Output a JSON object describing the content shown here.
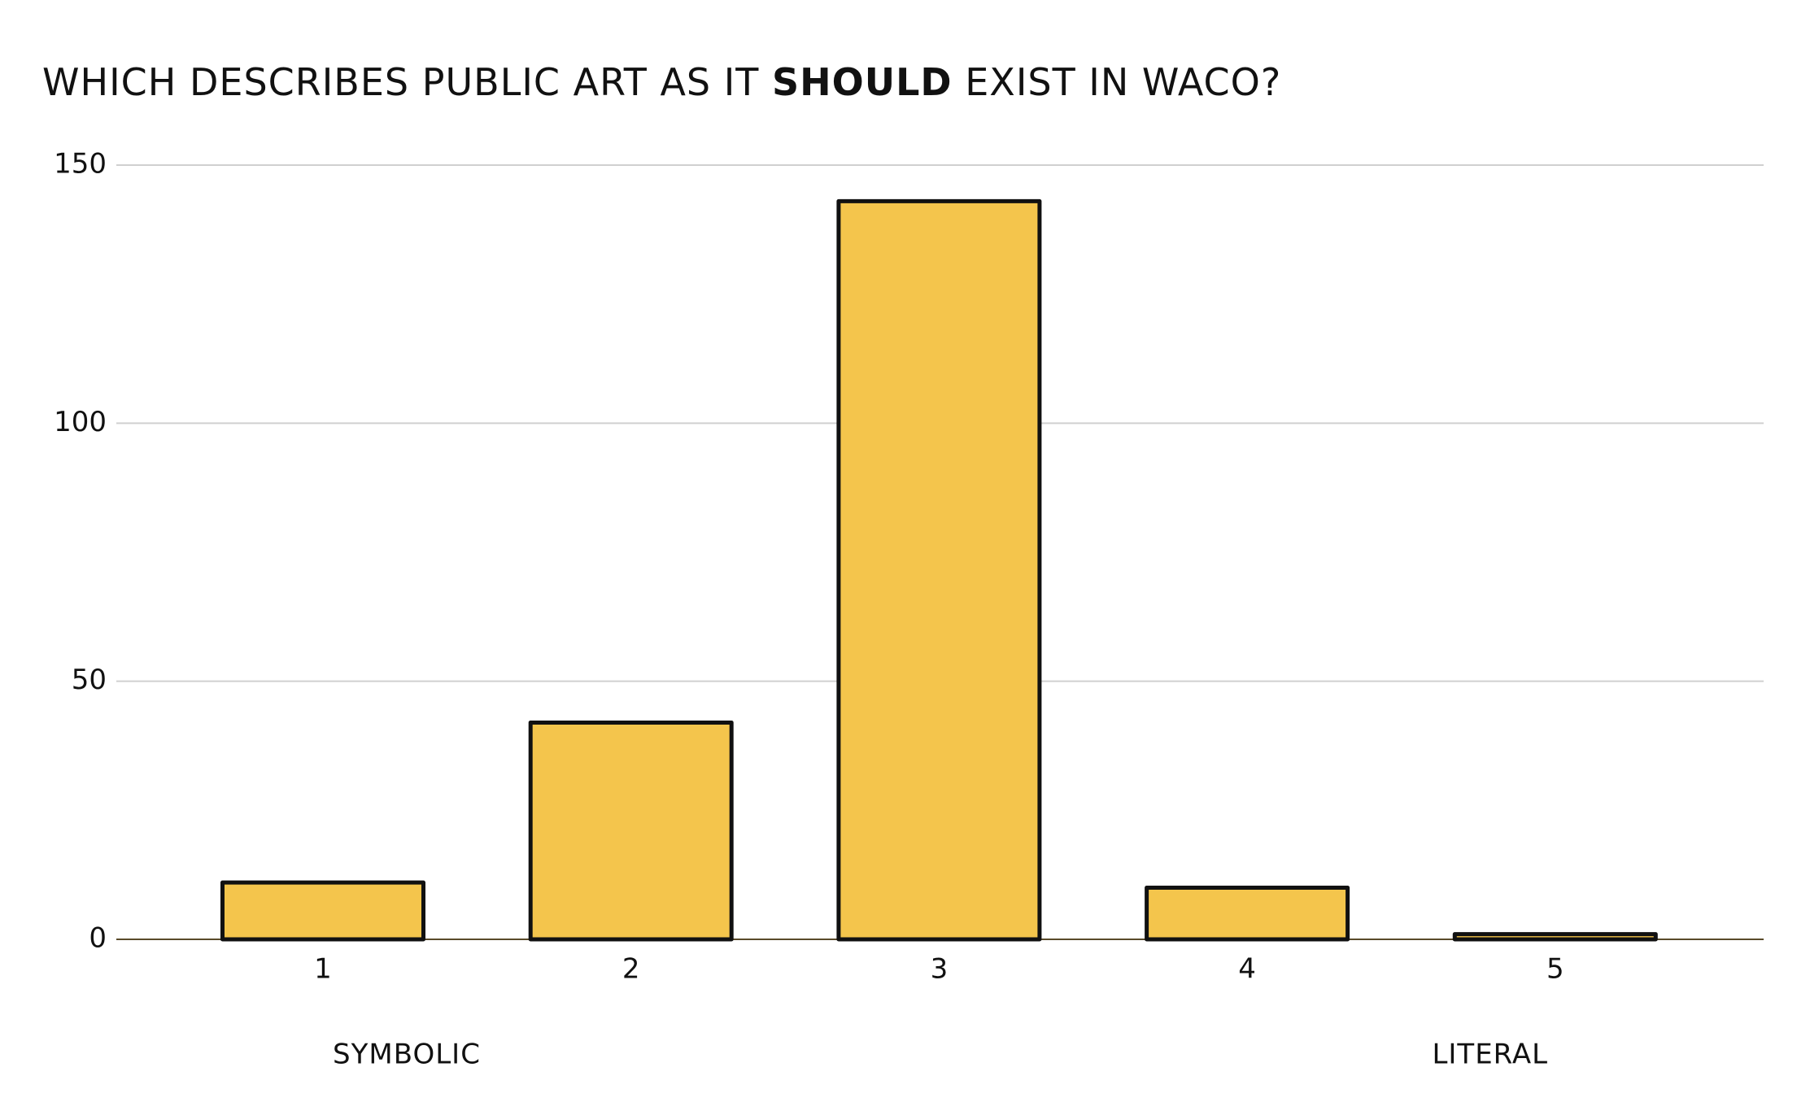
{
  "chart_data": {
    "type": "bar",
    "title": [
      "WHICH DESCRIBES PUBLIC ART AS IT ",
      "SHOULD",
      " EXIST IN WACO?"
    ],
    "categories": [
      "1",
      "2",
      "3",
      "4",
      "5"
    ],
    "values": [
      11,
      42,
      143,
      10,
      1
    ],
    "color": "#f4c54c",
    "ylim": [
      0,
      150
    ],
    "yticks": [
      0,
      50,
      100,
      150
    ],
    "grid": true,
    "annotations": [
      {
        "text": "SYMBOLIC",
        "category": 0
      },
      {
        "text": "LITERAL",
        "category": 4
      }
    ]
  }
}
